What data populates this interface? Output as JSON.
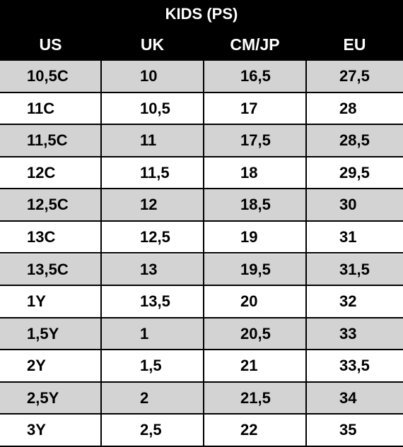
{
  "table": {
    "title": "KIDS (PS)",
    "header": [
      "US",
      "UK",
      "CM/JP",
      "EU"
    ],
    "rows": [
      [
        "10,5C",
        "10",
        "16,5",
        "27,5"
      ],
      [
        "11C",
        "10,5",
        "17",
        "28"
      ],
      [
        "11,5C",
        "11",
        "17,5",
        "28,5"
      ],
      [
        "12C",
        "11,5",
        "18",
        "29,5"
      ],
      [
        "12,5C",
        "12",
        "18,5",
        "30"
      ],
      [
        "13C",
        "12,5",
        "19",
        "31"
      ],
      [
        "13,5C",
        "13",
        "19,5",
        "31,5"
      ],
      [
        "1Y",
        "13,5",
        "20",
        "32"
      ],
      [
        "1,5Y",
        "1",
        "20,5",
        "33"
      ],
      [
        "2Y",
        "1,5",
        "21",
        "33,5"
      ],
      [
        "2,5Y",
        "2",
        "21,5",
        "34"
      ],
      [
        "3Y",
        "2,5",
        "22",
        "35"
      ]
    ]
  }
}
